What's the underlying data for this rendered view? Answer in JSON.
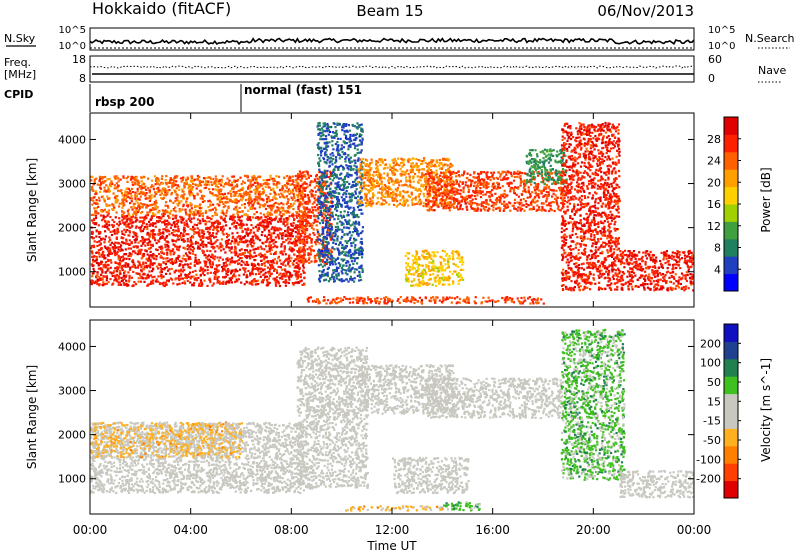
{
  "header": {
    "station": "Hokkaido (fitACF)",
    "beam": "Beam 15",
    "date": "06/Nov/2013"
  },
  "nsky_panel": {
    "label": "N.Sky",
    "ticks_left": [
      "10^5",
      "10^0"
    ],
    "right_label": "N.Search",
    "ticks_right": [
      "10^5",
      "10^0"
    ]
  },
  "freq_panel": {
    "label_line1": "Freq.",
    "label_line2": "[MHz]",
    "ticks_left": [
      "18",
      "8"
    ],
    "right_label": "Nave",
    "ticks_right": [
      "60",
      "0"
    ]
  },
  "cpid_panel": {
    "label": "CPID",
    "modes": [
      {
        "name": "rbsp 200",
        "start_hour": 0
      },
      {
        "name": "normal (fast) 151",
        "start_hour": 6
      }
    ]
  },
  "x_axis": {
    "label": "Time UT",
    "ticks": [
      "00:00",
      "04:00",
      "08:00",
      "12:00",
      "16:00",
      "20:00",
      "00:00"
    ],
    "range_hours": [
      0,
      24
    ]
  },
  "chart_data": [
    {
      "type": "heatmap",
      "parameter": "Power",
      "xlabel": "",
      "ylabel": "Slant Range [km]",
      "yticks": [
        "1000",
        "2000",
        "3000",
        "4000"
      ],
      "ylim": [
        200,
        4600
      ],
      "colorbar": {
        "label": "Power [dB]",
        "ticks": [
          "28",
          "24",
          "20",
          "16",
          "12",
          "8",
          "4"
        ],
        "range": [
          0,
          32
        ],
        "colors": [
          "#0000ff",
          "#2040c0",
          "#208060",
          "#40a040",
          "#a0d000",
          "#ffd000",
          "#ffa000",
          "#ff6000",
          "#ff2000",
          "#e00000"
        ]
      },
      "regions": [
        {
          "x": [
            0,
            8.5
          ],
          "y": [
            700,
            2300
          ],
          "value": 28
        },
        {
          "x": [
            0,
            8.5
          ],
          "y": [
            2300,
            3200
          ],
          "value": 24
        },
        {
          "x": [
            8.2,
            9.6
          ],
          "y": [
            1200,
            3300
          ],
          "value": 26
        },
        {
          "x": [
            9.0,
            10.8
          ],
          "y": [
            800,
            4400
          ],
          "value": 6
        },
        {
          "x": [
            10.6,
            14.4
          ],
          "y": [
            2500,
            3600
          ],
          "value": 22
        },
        {
          "x": [
            13.3,
            18.8
          ],
          "y": [
            2400,
            3300
          ],
          "value": 26
        },
        {
          "x": [
            17.3,
            18.9
          ],
          "y": [
            3000,
            3800
          ],
          "value": 10
        },
        {
          "x": [
            12.5,
            14.8
          ],
          "y": [
            700,
            1500
          ],
          "value": 18
        },
        {
          "x": [
            8.6,
            18.0
          ],
          "y": [
            300,
            450
          ],
          "value": 26
        },
        {
          "x": [
            18.7,
            21.0
          ],
          "y": [
            600,
            4400
          ],
          "value": 28
        },
        {
          "x": [
            21.0,
            24.0
          ],
          "y": [
            600,
            1500
          ],
          "value": 28
        }
      ]
    },
    {
      "type": "heatmap",
      "parameter": "Velocity",
      "xlabel": "Time UT",
      "ylabel": "Slant Range [km]",
      "yticks": [
        "1000",
        "2000",
        "3000",
        "4000"
      ],
      "ylim": [
        200,
        4600
      ],
      "colorbar": {
        "label": "Velocity [m s^-1]",
        "ticks": [
          "200",
          "100",
          "50",
          "15",
          "-15",
          "-50",
          "-100",
          "-200"
        ],
        "range": [
          -250,
          250
        ],
        "colors": [
          "#e00000",
          "#ff4000",
          "#ff8000",
          "#ffb020",
          "#c8c8c0",
          "#c8c8c0",
          "#40c020",
          "#208050",
          "#204090",
          "#1010c0"
        ]
      },
      "regions": [
        {
          "x": [
            0,
            8.5
          ],
          "y": [
            700,
            2300
          ],
          "value": 0
        },
        {
          "x": [
            0,
            6.0
          ],
          "y": [
            1500,
            2300
          ],
          "value": -60
        },
        {
          "x": [
            8.2,
            11.0
          ],
          "y": [
            800,
            4000
          ],
          "value": 0
        },
        {
          "x": [
            10.6,
            14.4
          ],
          "y": [
            2500,
            3600
          ],
          "value": 0
        },
        {
          "x": [
            13.3,
            18.8
          ],
          "y": [
            2400,
            3300
          ],
          "value": 0
        },
        {
          "x": [
            12.0,
            15.0
          ],
          "y": [
            700,
            1500
          ],
          "value": 0
        },
        {
          "x": [
            10.0,
            14.0
          ],
          "y": [
            300,
            400
          ],
          "value": -60
        },
        {
          "x": [
            14.0,
            15.5
          ],
          "y": [
            300,
            500
          ],
          "value": 80
        },
        {
          "x": [
            18.7,
            21.2
          ],
          "y": [
            1000,
            4400
          ],
          "value": 70
        },
        {
          "x": [
            21.0,
            24.0
          ],
          "y": [
            600,
            1200
          ],
          "value": 0
        }
      ]
    }
  ]
}
